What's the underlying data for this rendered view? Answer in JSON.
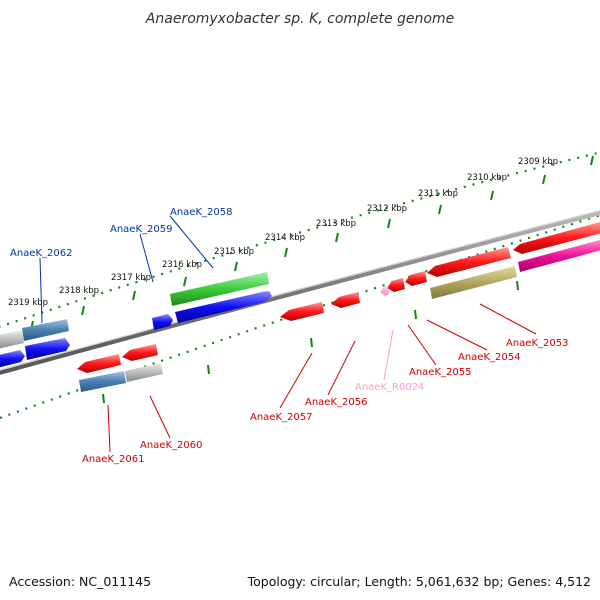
{
  "title": "Anaeromyxobacter sp. K, complete genome",
  "accession": "Accession: NC_011145",
  "topology": "Topology: circular; Length: 5,061,632 bp; Genes: 4,512",
  "ticks": [
    "2309 kbp",
    "2310 kbp",
    "2311 kbp",
    "2312 kbp",
    "2313 kbp",
    "2314 kbp",
    "2315 kbp",
    "2316 kbp",
    "2317 kbp",
    "2318 kbp",
    "2319 kbp"
  ],
  "genes": [
    {
      "id": "AnaeK_2053",
      "color": "#cc0000"
    },
    {
      "id": "AnaeK_2054",
      "color": "#cc0000"
    },
    {
      "id": "AnaeK_2055",
      "color": "#cc0000"
    },
    {
      "id": "AnaeK_R0024",
      "color": "#ff99cc"
    },
    {
      "id": "AnaeK_2056",
      "color": "#cc0000"
    },
    {
      "id": "AnaeK_2057",
      "color": "#cc0000"
    },
    {
      "id": "AnaeK_2058",
      "color": "#0033aa"
    },
    {
      "id": "AnaeK_2059",
      "color": "#0033aa"
    },
    {
      "id": "AnaeK_2060",
      "color": "#cc0000"
    },
    {
      "id": "AnaeK_2061",
      "color": "#cc0000"
    },
    {
      "id": "AnaeK_2062",
      "color": "#0033aa"
    }
  ],
  "colors": {
    "tick_green": "#118811",
    "backbone": "#777777",
    "red": "#ff0000",
    "blue": "#0000ee",
    "green": "#33cc33",
    "steel": "#4a7fb0",
    "gray": "#bbbbbb",
    "olive": "#b0a860",
    "magenta": "#ee1199",
    "pink": "#ff99cc"
  }
}
